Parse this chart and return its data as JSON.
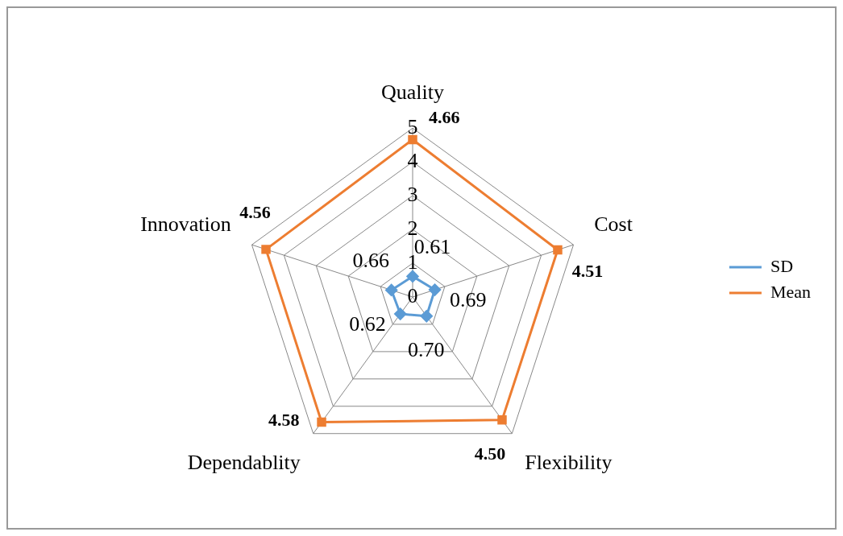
{
  "chart_data": {
    "type": "radar",
    "categories": [
      "Quality",
      "Cost",
      "Flexibility",
      "Dependablity",
      "Innovation"
    ],
    "series": [
      {
        "name": "SD",
        "color": "#5b9bd5",
        "marker": "diamond",
        "values": [
          0.61,
          0.69,
          0.7,
          0.62,
          0.66
        ],
        "value_labels": [
          "0.61",
          "0.69",
          "0.70",
          "0.62",
          "0.66"
        ]
      },
      {
        "name": "Mean",
        "color": "#ed7d31",
        "marker": "square",
        "values": [
          4.66,
          4.51,
          4.5,
          4.58,
          4.56
        ],
        "value_labels": [
          "4.66",
          "4.51",
          "4.50",
          "4.58",
          "4.56"
        ]
      }
    ],
    "ylim": [
      0,
      5
    ],
    "yticks": [
      0,
      1,
      2,
      3,
      4,
      5
    ],
    "grid": true,
    "legend": "right",
    "line_style": "solid"
  }
}
